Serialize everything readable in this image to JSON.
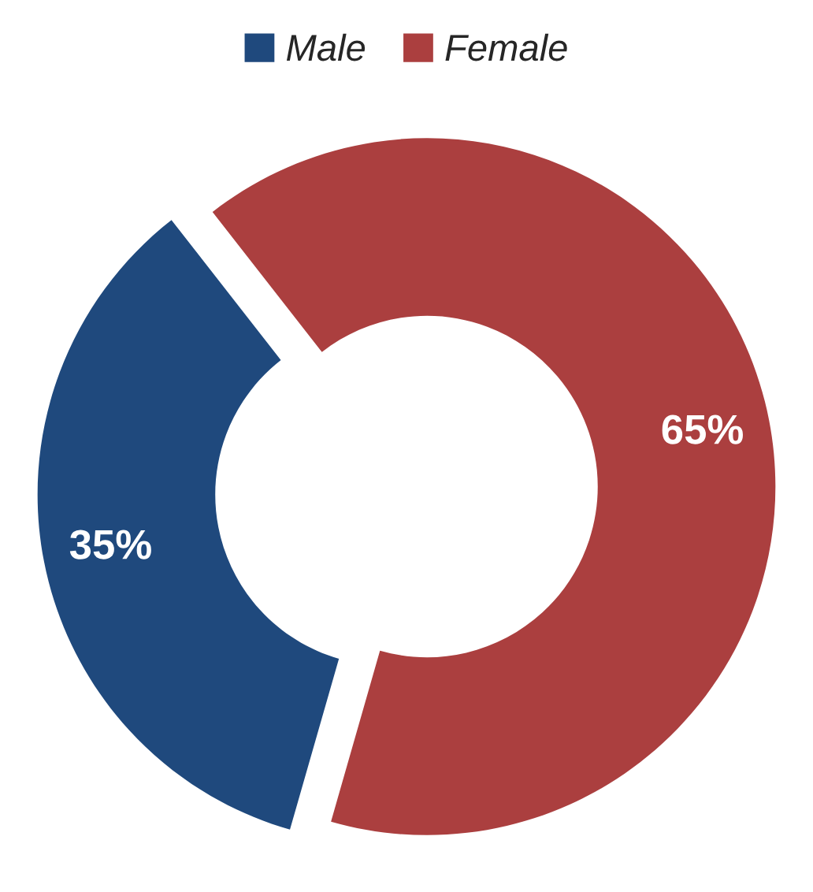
{
  "chart_data": {
    "type": "donut",
    "categories": [
      "Male",
      "Female"
    ],
    "values": [
      35,
      65
    ],
    "colors": [
      "#1f497d",
      "#ab3f3f"
    ],
    "value_labels": [
      "35%",
      "65%"
    ],
    "legend": "top"
  }
}
